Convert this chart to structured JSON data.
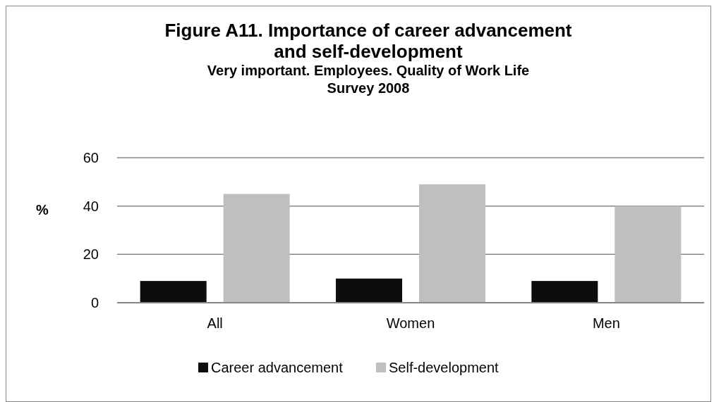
{
  "chart_data": {
    "type": "bar",
    "title": "Figure A11. Importance of career advancement and self-development",
    "subtitle": "Very important. Employees. Quality of Work Life Survey  2008",
    "ylabel": "%",
    "categories": [
      "All",
      "Women",
      "Men"
    ],
    "series": [
      {
        "name": "Career advancement",
        "color": "#0d0d0d",
        "values": [
          9,
          10,
          9
        ]
      },
      {
        "name": "Self-development",
        "color": "#bfbfbf",
        "values": [
          45,
          49,
          40
        ]
      }
    ],
    "ylim": [
      0,
      60
    ],
    "yticks": [
      0,
      20,
      40,
      60
    ],
    "grid": "y",
    "legend": "bottom"
  }
}
